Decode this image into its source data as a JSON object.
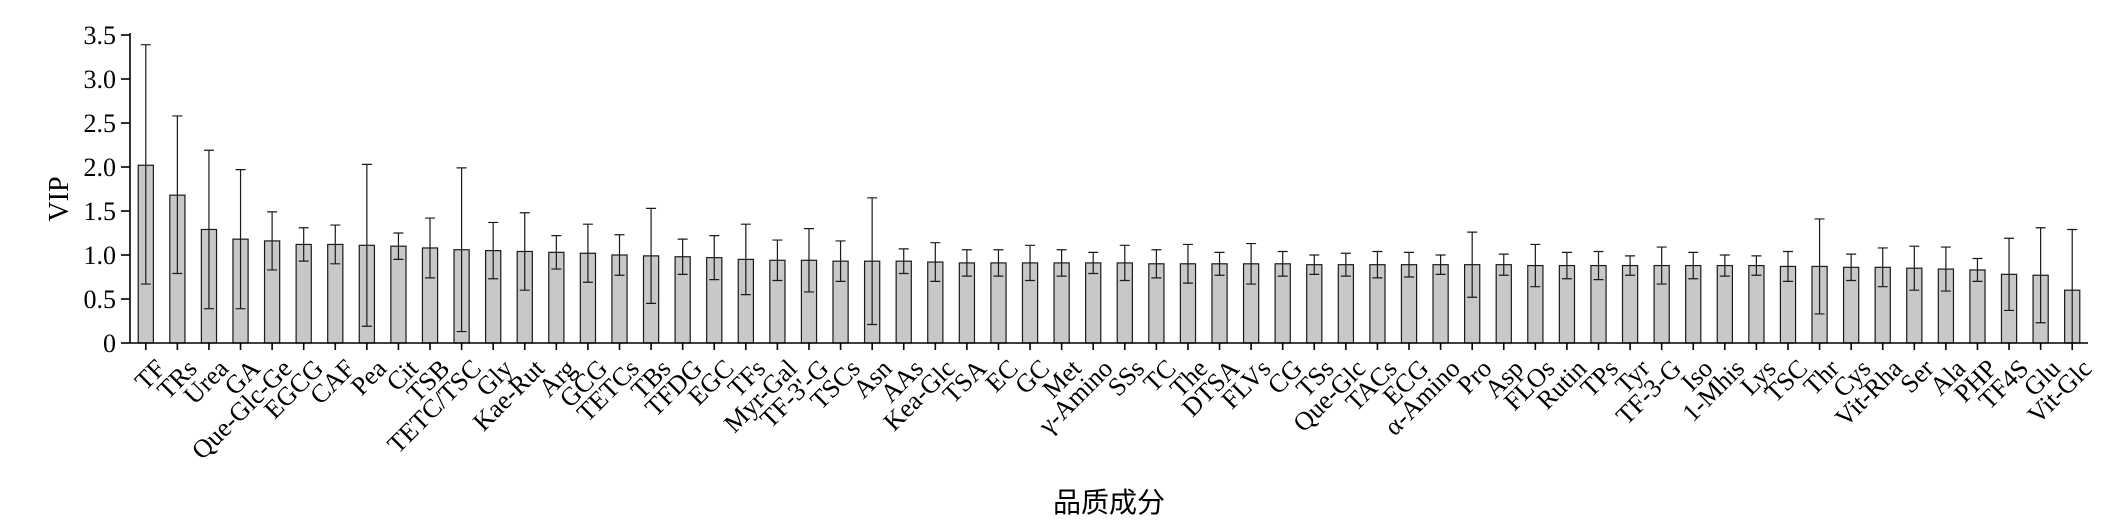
{
  "chart_data": {
    "type": "bar",
    "xlabel": "品质成分",
    "ylabel": "VIP",
    "ylim": [
      0,
      3.5
    ],
    "yticks": [
      "0",
      "0.5",
      "1.0",
      "1.5",
      "2.0",
      "2.5",
      "3.0",
      "3.5"
    ],
    "grid": false,
    "categories": [
      "TF",
      "TRs",
      "Urea",
      "GA",
      "Que-Glc-Ge",
      "EGCG",
      "CAF",
      "Pea",
      "Cit",
      "TSB",
      "TETC/TSC",
      "Gly",
      "Kae-Rut",
      "Arg",
      "GCG",
      "TETCs",
      "TBs",
      "TFDG",
      "EGC",
      "TFs",
      "Myr-Gal",
      "TF-3'-G",
      "TSCs",
      "Asn",
      "AAs",
      "Kea-Glc",
      "TSA",
      "EC",
      "GC",
      "Met",
      "γ-Amino",
      "SSs",
      "TC",
      "The",
      "DTSA",
      "FLVs",
      "CG",
      "TSs",
      "Que-Glc",
      "TACs",
      "ECG",
      "α-Amino",
      "Pro",
      "Asp",
      "FLOs",
      "Rutin",
      "TPs",
      "Tyr",
      "TF-3-G",
      "Iso",
      "1-Mhis",
      "Lys",
      "TSC",
      "Thr",
      "Cys",
      "Vit-Rha",
      "Ser",
      "Ala",
      "PHP",
      "TF4S",
      "Glu",
      "Vit-Glc"
    ],
    "values": [
      2.02,
      1.68,
      1.29,
      1.18,
      1.16,
      1.12,
      1.12,
      1.11,
      1.1,
      1.08,
      1.06,
      1.05,
      1.04,
      1.03,
      1.02,
      1.0,
      0.99,
      0.98,
      0.97,
      0.95,
      0.94,
      0.94,
      0.93,
      0.93,
      0.93,
      0.92,
      0.91,
      0.91,
      0.91,
      0.91,
      0.91,
      0.91,
      0.9,
      0.9,
      0.9,
      0.9,
      0.9,
      0.89,
      0.89,
      0.89,
      0.89,
      0.89,
      0.89,
      0.89,
      0.88,
      0.88,
      0.88,
      0.88,
      0.88,
      0.88,
      0.88,
      0.88,
      0.87,
      0.87,
      0.86,
      0.86,
      0.85,
      0.84,
      0.83,
      0.78,
      0.77,
      0.6
    ],
    "error_upper": [
      3.39,
      2.58,
      2.19,
      1.97,
      1.49,
      1.31,
      1.34,
      2.03,
      1.25,
      1.42,
      1.99,
      1.37,
      1.48,
      1.22,
      1.35,
      1.23,
      1.53,
      1.18,
      1.22,
      1.35,
      1.17,
      1.3,
      1.16,
      1.65,
      1.07,
      1.14,
      1.06,
      1.06,
      1.11,
      1.06,
      1.03,
      1.11,
      1.06,
      1.12,
      1.03,
      1.13,
      1.04,
      1.0,
      1.02,
      1.04,
      1.03,
      1.0,
      1.26,
      1.01,
      1.12,
      1.03,
      1.04,
      0.99,
      1.09,
      1.03,
      1.0,
      0.99,
      1.04,
      1.41,
      1.01,
      1.08,
      1.1,
      1.09,
      0.96,
      1.19,
      1.31,
      1.29
    ],
    "error_lower": [
      0.67,
      0.79,
      0.39,
      0.39,
      0.83,
      0.93,
      0.9,
      0.19,
      0.95,
      0.74,
      0.13,
      0.73,
      0.6,
      0.84,
      0.69,
      0.77,
      0.45,
      0.78,
      0.72,
      0.55,
      0.71,
      0.58,
      0.7,
      0.21,
      0.79,
      0.7,
      0.76,
      0.76,
      0.71,
      0.76,
      0.79,
      0.71,
      0.74,
      0.68,
      0.77,
      0.67,
      0.76,
      0.78,
      0.76,
      0.74,
      0.75,
      0.78,
      0.52,
      0.77,
      0.64,
      0.73,
      0.72,
      0.77,
      0.67,
      0.73,
      0.76,
      0.77,
      0.7,
      0.33,
      0.71,
      0.64,
      0.6,
      0.59,
      0.7,
      0.37,
      0.23,
      0.0
    ]
  }
}
